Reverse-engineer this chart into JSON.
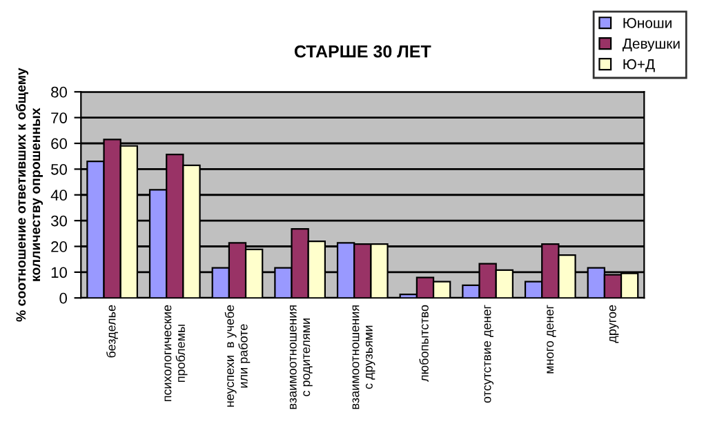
{
  "chart_data": {
    "type": "bar",
    "title": "СТАРШЕ 30 ЛЕТ",
    "ylabel": "% соотношение ответивших к общему\nколличеству опрошенных",
    "categories": [
      "безделье",
      "психологические\nпроблемы",
      "неуспехи  в учебе\nили работе",
      "взаимоотношения\nс родителями",
      "взаимоотношения\nс друзьями",
      "любопытство",
      "отсутствие денег",
      "много денег",
      "другое"
    ],
    "series": [
      {
        "name": "Юноши",
        "color": "#9999ff",
        "values": [
          53,
          42,
          11.7,
          11.7,
          21.4,
          1.4,
          4.9,
          6.3,
          11.7
        ]
      },
      {
        "name": "Девушки",
        "color": "#993366",
        "values": [
          61.5,
          55.7,
          21.4,
          26.8,
          20.9,
          7.9,
          13.3,
          20.9,
          9.0
        ]
      },
      {
        "name": "Ю+Д",
        "color": "#ffffcc",
        "values": [
          59,
          51.5,
          18.8,
          22,
          20.9,
          6.3,
          10.8,
          16.6,
          9.5
        ]
      }
    ],
    "ylim": [
      0,
      80
    ],
    "yticks": [
      0,
      10,
      20,
      30,
      40,
      50,
      60,
      70,
      80
    ],
    "grid": "y",
    "legend": "top right"
  }
}
